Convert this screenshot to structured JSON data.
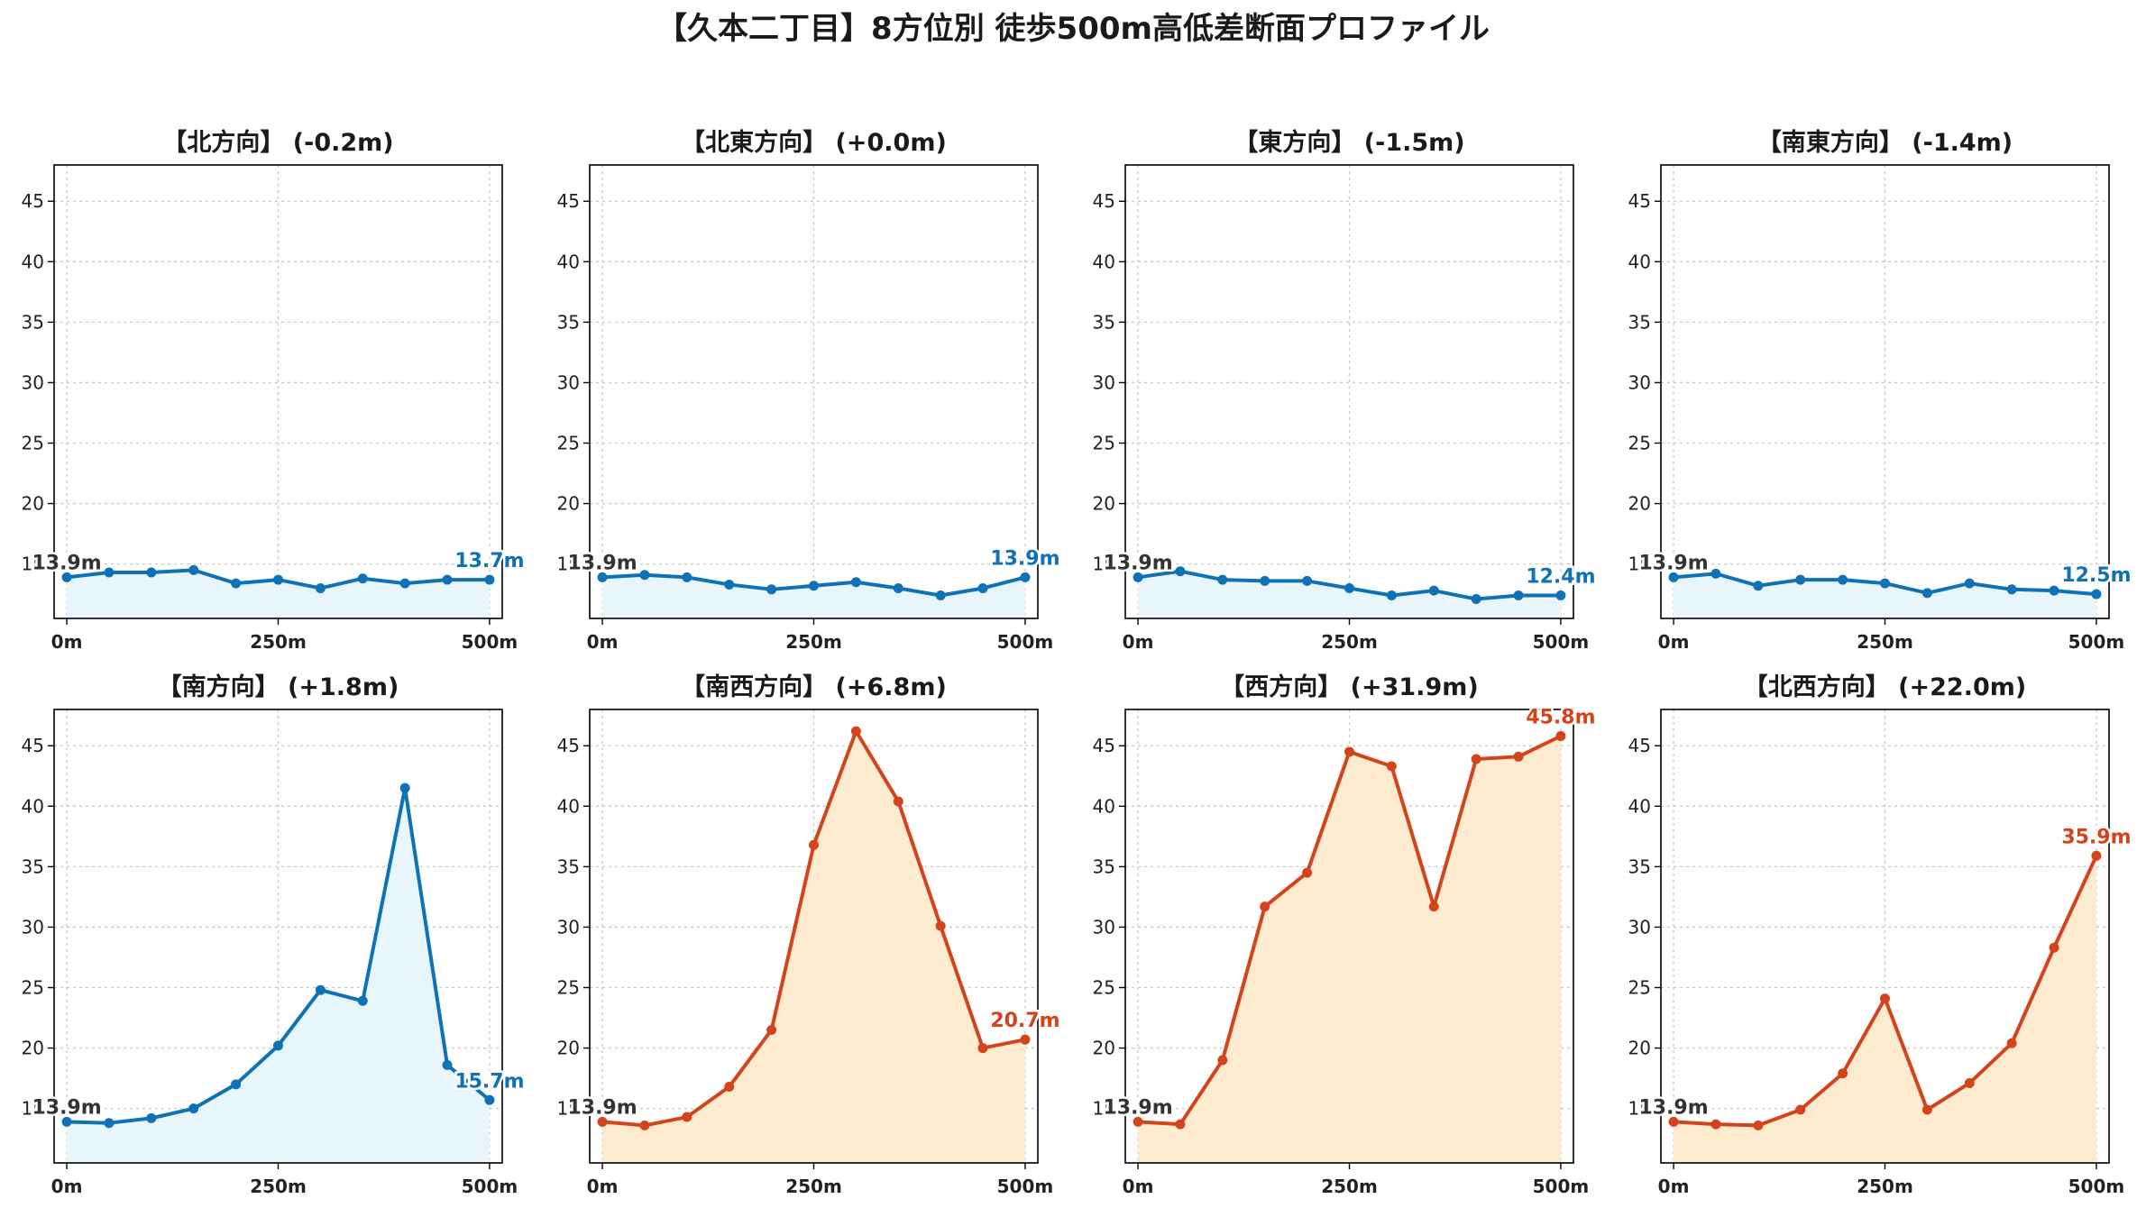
{
  "suptitle": "【久本二丁目】8方位別 徒歩500m高低差断面プロファイル",
  "colors": {
    "descent_line": "#0f72b7",
    "descent_fill": "#e8f6fc",
    "ascent_line": "#d4441c",
    "ascent_fill": "#fdebd0",
    "grid": "#c8c8c8",
    "start_label": "#333333"
  },
  "chart_data": [
    {
      "type": "area",
      "title": "【北方向】 (-0.2m)",
      "trend": "down",
      "x": [
        0,
        50,
        100,
        150,
        200,
        250,
        300,
        350,
        400,
        450,
        500
      ],
      "y": [
        13.9,
        14.3,
        14.3,
        14.5,
        13.4,
        13.7,
        13.0,
        13.8,
        13.4,
        13.7,
        13.7
      ],
      "start_label": "13.9m",
      "end_label": "13.7m",
      "ylim": [
        10.5,
        48
      ],
      "xlim": [
        -15,
        515
      ],
      "yticks": [
        15,
        20,
        25,
        30,
        35,
        40,
        45
      ],
      "xticks": [
        0,
        250,
        500
      ],
      "xtick_labels": [
        "0m",
        "250m",
        "500m"
      ],
      "grid": true
    },
    {
      "type": "area",
      "title": "【北東方向】 (+0.0m)",
      "trend": "down",
      "x": [
        0,
        50,
        100,
        150,
        200,
        250,
        300,
        350,
        400,
        450,
        500
      ],
      "y": [
        13.9,
        14.1,
        13.9,
        13.3,
        12.9,
        13.2,
        13.5,
        13.0,
        12.4,
        13.0,
        13.9
      ],
      "start_label": "13.9m",
      "end_label": "13.9m",
      "ylim": [
        10.5,
        48
      ],
      "xlim": [
        -15,
        515
      ],
      "yticks": [
        15,
        20,
        25,
        30,
        35,
        40,
        45
      ],
      "xticks": [
        0,
        250,
        500
      ],
      "xtick_labels": [
        "0m",
        "250m",
        "500m"
      ],
      "grid": true
    },
    {
      "type": "area",
      "title": "【東方向】 (-1.5m)",
      "trend": "down",
      "x": [
        0,
        50,
        100,
        150,
        200,
        250,
        300,
        350,
        400,
        450,
        500
      ],
      "y": [
        13.9,
        14.4,
        13.7,
        13.6,
        13.6,
        13.0,
        12.4,
        12.8,
        12.1,
        12.4,
        12.4
      ],
      "start_label": "13.9m",
      "end_label": "12.4m",
      "ylim": [
        10.5,
        48
      ],
      "xlim": [
        -15,
        515
      ],
      "yticks": [
        15,
        20,
        25,
        30,
        35,
        40,
        45
      ],
      "xticks": [
        0,
        250,
        500
      ],
      "xtick_labels": [
        "0m",
        "250m",
        "500m"
      ],
      "grid": true
    },
    {
      "type": "area",
      "title": "【南東方向】 (-1.4m)",
      "trend": "down",
      "x": [
        0,
        50,
        100,
        150,
        200,
        250,
        300,
        350,
        400,
        450,
        500
      ],
      "y": [
        13.9,
        14.2,
        13.2,
        13.7,
        13.7,
        13.4,
        12.6,
        13.4,
        12.9,
        12.8,
        12.5
      ],
      "start_label": "13.9m",
      "end_label": "12.5m",
      "ylim": [
        10.5,
        48
      ],
      "xlim": [
        -15,
        515
      ],
      "yticks": [
        15,
        20,
        25,
        30,
        35,
        40,
        45
      ],
      "xticks": [
        0,
        250,
        500
      ],
      "xtick_labels": [
        "0m",
        "250m",
        "500m"
      ],
      "grid": true
    },
    {
      "type": "area",
      "title": "【南方向】 (+1.8m)",
      "trend": "down",
      "x": [
        0,
        50,
        100,
        150,
        200,
        250,
        300,
        350,
        400,
        450,
        500
      ],
      "y": [
        13.9,
        13.8,
        14.2,
        15.0,
        17.0,
        20.2,
        24.8,
        23.9,
        41.5,
        18.6,
        15.7
      ],
      "start_label": "13.9m",
      "end_label": "15.7m",
      "ylim": [
        10.5,
        48
      ],
      "xlim": [
        -15,
        515
      ],
      "yticks": [
        15,
        20,
        25,
        30,
        35,
        40,
        45
      ],
      "xticks": [
        0,
        250,
        500
      ],
      "xtick_labels": [
        "0m",
        "250m",
        "500m"
      ],
      "grid": true
    },
    {
      "type": "area",
      "title": "【南西方向】 (+6.8m)",
      "trend": "up",
      "x": [
        0,
        50,
        100,
        150,
        200,
        250,
        300,
        350,
        400,
        450,
        500
      ],
      "y": [
        13.9,
        13.6,
        14.3,
        16.8,
        21.5,
        36.8,
        46.2,
        40.4,
        30.1,
        20.0,
        20.7
      ],
      "start_label": "13.9m",
      "end_label": "20.7m",
      "ylim": [
        10.5,
        48
      ],
      "xlim": [
        -15,
        515
      ],
      "yticks": [
        15,
        20,
        25,
        30,
        35,
        40,
        45
      ],
      "xticks": [
        0,
        250,
        500
      ],
      "xtick_labels": [
        "0m",
        "250m",
        "500m"
      ],
      "grid": true
    },
    {
      "type": "area",
      "title": "【西方向】 (+31.9m)",
      "trend": "up",
      "x": [
        0,
        50,
        100,
        150,
        200,
        250,
        300,
        350,
        400,
        450,
        500
      ],
      "y": [
        13.9,
        13.7,
        19.0,
        31.7,
        34.5,
        44.5,
        43.3,
        31.7,
        43.9,
        44.1,
        45.8
      ],
      "start_label": "13.9m",
      "end_label": "45.8m",
      "ylim": [
        10.5,
        48
      ],
      "xlim": [
        -15,
        515
      ],
      "yticks": [
        15,
        20,
        25,
        30,
        35,
        40,
        45
      ],
      "xticks": [
        0,
        250,
        500
      ],
      "xtick_labels": [
        "0m",
        "250m",
        "500m"
      ],
      "grid": true
    },
    {
      "type": "area",
      "title": "【北西方向】 (+22.0m)",
      "trend": "up",
      "x": [
        0,
        50,
        100,
        150,
        200,
        250,
        300,
        350,
        400,
        450,
        500
      ],
      "y": [
        13.9,
        13.7,
        13.6,
        14.9,
        17.9,
        24.1,
        14.9,
        17.1,
        20.4,
        28.3,
        35.9
      ],
      "start_label": "13.9m",
      "end_label": "35.9m",
      "ylim": [
        10.5,
        48
      ],
      "xlim": [
        -15,
        515
      ],
      "yticks": [
        15,
        20,
        25,
        30,
        35,
        40,
        45
      ],
      "xticks": [
        0,
        250,
        500
      ],
      "xtick_labels": [
        "0m",
        "250m",
        "500m"
      ],
      "grid": true
    }
  ]
}
